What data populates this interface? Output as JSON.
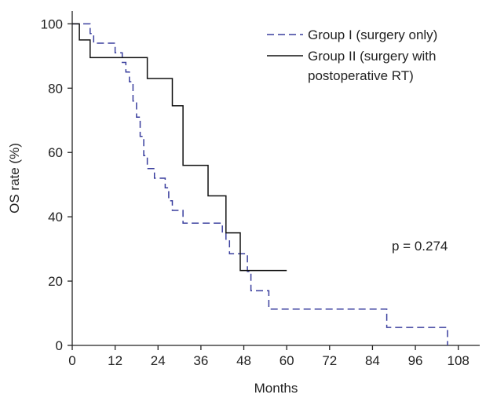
{
  "chart_data": {
    "type": "line",
    "subtype": "kaplan-meier step curve",
    "title": "",
    "xlabel": "Months",
    "ylabel": "OS rate (%)",
    "xlim": [
      0,
      114
    ],
    "ylim": [
      0,
      104
    ],
    "xticks": [
      0,
      12,
      24,
      36,
      48,
      60,
      72,
      84,
      96,
      108
    ],
    "yticks": [
      0,
      20,
      40,
      60,
      80,
      100
    ],
    "grid": false,
    "legend_position": "top-right",
    "annotation": "p = 0.274",
    "series": [
      {
        "name": "Group I (surgery only)",
        "color": "#3a3f9e",
        "dash": "dashed",
        "points": [
          [
            0,
            100
          ],
          [
            5,
            100
          ],
          [
            5,
            97
          ],
          [
            6,
            97
          ],
          [
            6,
            94
          ],
          [
            12,
            94
          ],
          [
            12,
            91
          ],
          [
            14,
            91
          ],
          [
            14,
            88
          ],
          [
            15,
            88
          ],
          [
            15,
            85
          ],
          [
            16,
            85
          ],
          [
            16,
            82
          ],
          [
            17,
            82
          ],
          [
            17,
            76
          ],
          [
            18,
            76
          ],
          [
            18,
            71
          ],
          [
            19,
            71
          ],
          [
            19,
            65
          ],
          [
            20,
            65
          ],
          [
            20,
            59
          ],
          [
            21,
            59
          ],
          [
            21,
            55
          ],
          [
            23,
            55
          ],
          [
            23,
            52
          ],
          [
            26,
            52
          ],
          [
            26,
            49
          ],
          [
            27,
            49
          ],
          [
            27,
            45
          ],
          [
            28,
            45
          ],
          [
            28,
            42
          ],
          [
            31,
            42
          ],
          [
            31,
            38
          ],
          [
            42,
            38
          ],
          [
            42,
            35
          ],
          [
            43,
            35
          ],
          [
            43,
            33
          ],
          [
            44,
            33
          ],
          [
            44,
            28.5
          ],
          [
            49,
            28.5
          ],
          [
            49,
            23
          ],
          [
            50,
            23
          ],
          [
            50,
            17
          ],
          [
            55,
            17
          ],
          [
            55,
            11.3
          ],
          [
            88,
            11.3
          ],
          [
            88,
            5.6
          ],
          [
            105,
            5.6
          ],
          [
            105,
            0
          ]
        ]
      },
      {
        "name": "Group II (surgery with postoperative RT)",
        "color": "#111111",
        "dash": "solid",
        "points": [
          [
            0,
            100
          ],
          [
            2,
            100
          ],
          [
            2,
            95
          ],
          [
            5,
            95
          ],
          [
            5,
            89.5
          ],
          [
            17,
            89.5
          ],
          [
            17,
            89.5
          ],
          [
            21,
            89.5
          ],
          [
            21,
            83
          ],
          [
            28,
            83
          ],
          [
            28,
            74.5
          ],
          [
            31,
            74.5
          ],
          [
            31,
            65
          ],
          [
            31,
            56
          ],
          [
            38,
            56
          ],
          [
            38,
            46.5
          ],
          [
            43,
            46.5
          ],
          [
            43,
            35
          ],
          [
            47,
            35
          ],
          [
            47,
            23.3
          ],
          [
            60,
            23.3
          ]
        ]
      }
    ]
  },
  "legend": {
    "items": [
      {
        "line1": "Group I (surgery only)",
        "line2": ""
      },
      {
        "line1": "Group II (surgery with",
        "line2": "postoperative RT)"
      }
    ]
  }
}
